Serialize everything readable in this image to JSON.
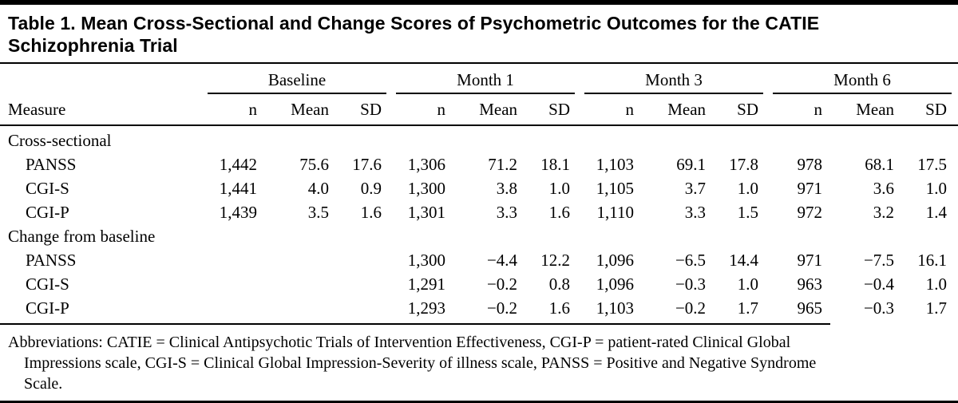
{
  "colors": {
    "text": "#000000",
    "background": "#ffffff",
    "rule": "#000000"
  },
  "title": "Table 1. Mean Cross-Sectional and Change Scores of Psychometric Outcomes for the CATIE Schizophrenia Trial",
  "table": {
    "measure_header": "Measure",
    "groups": [
      {
        "label": "Baseline"
      },
      {
        "label": "Month 1"
      },
      {
        "label": "Month 3"
      },
      {
        "label": "Month 6"
      }
    ],
    "subheaders": [
      "n",
      "Mean",
      "SD"
    ],
    "rows": [
      {
        "type": "section",
        "label": "Cross-sectional",
        "cells": [
          "",
          "",
          "",
          "",
          "",
          "",
          "",
          "",
          "",
          "",
          "",
          ""
        ]
      },
      {
        "type": "data",
        "label": "PANSS",
        "cells": [
          "1,442",
          "75.6",
          "17.6",
          "1,306",
          "71.2",
          "18.1",
          "1,103",
          "69.1",
          "17.8",
          "978",
          "68.1",
          "17.5"
        ]
      },
      {
        "type": "data",
        "label": "CGI-S",
        "cells": [
          "1,441",
          "4.0",
          "0.9",
          "1,300",
          "3.8",
          "1.0",
          "1,105",
          "3.7",
          "1.0",
          "971",
          "3.6",
          "1.0"
        ]
      },
      {
        "type": "data",
        "label": "CGI-P",
        "cells": [
          "1,439",
          "3.5",
          "1.6",
          "1,301",
          "3.3",
          "1.6",
          "1,110",
          "3.3",
          "1.5",
          "972",
          "3.2",
          "1.4"
        ]
      },
      {
        "type": "section",
        "label": "Change from baseline",
        "cells": [
          "",
          "",
          "",
          "",
          "",
          "",
          "",
          "",
          "",
          "",
          "",
          ""
        ]
      },
      {
        "type": "data",
        "label": "PANSS",
        "cells": [
          "",
          "",
          "",
          "1,300",
          "−4.4",
          "12.2",
          "1,096",
          "−6.5",
          "14.4",
          "971",
          "−7.5",
          "16.1"
        ]
      },
      {
        "type": "data",
        "label": "CGI-S",
        "cells": [
          "",
          "",
          "",
          "1,291",
          "−0.2",
          "0.8",
          "1,096",
          "−0.3",
          "1.0",
          "963",
          "−0.4",
          "1.0"
        ]
      },
      {
        "type": "data",
        "label": "CGI-P",
        "cells": [
          "",
          "",
          "",
          "1,293",
          "−0.2",
          "1.6",
          "1,103",
          "−0.2",
          "1.7",
          "965",
          "−0.3",
          "1.7"
        ]
      }
    ]
  },
  "footnote": "Abbreviations: CATIE = Clinical Antipsychotic Trials of Intervention Effectiveness, CGI-P = patient-rated Clinical Global Impressions scale, CGI-S = Clinical Global Impression-Severity of illness scale, PANSS = Positive and Negative Syndrome Scale."
}
